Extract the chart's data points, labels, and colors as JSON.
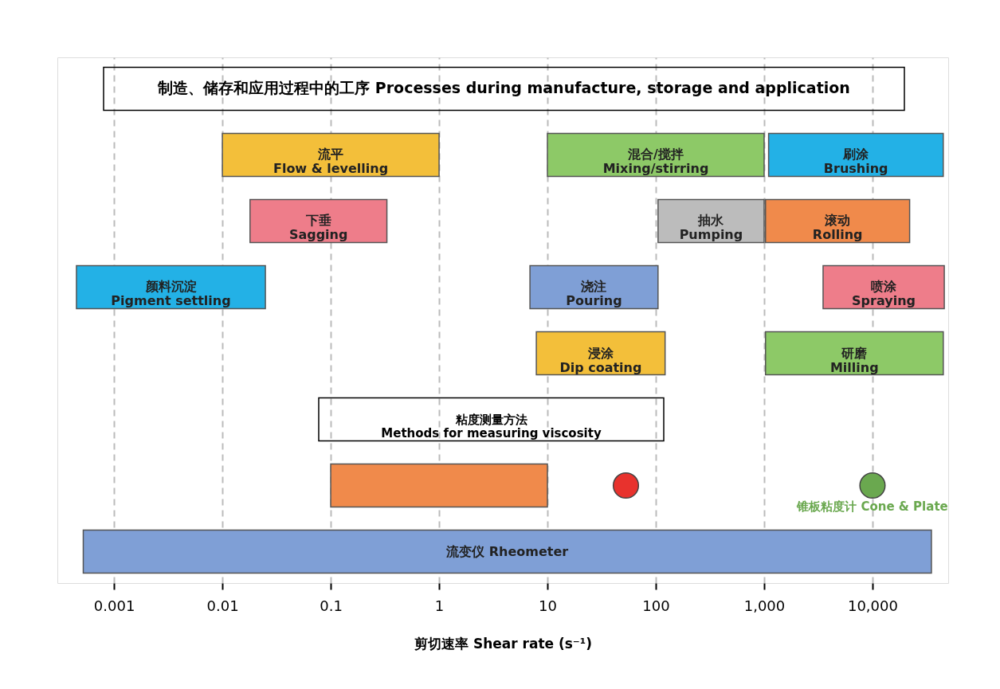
{
  "chart_data": {
    "type": "bar",
    "orientation": "horizontal",
    "log": "x",
    "grid": "x",
    "tick_labels": "x",
    "title": "制造、储存和应用过程中的工序 Processes during manufacture, storage and application",
    "xlabel": "剪切速率  Shear rate (s⁻¹)",
    "annotations": [
      "粘度测量方法\nMethods for measuring viscosity"
    ],
    "categories": [
      null,
      null,
      null,
      null,
      null,
      null,
      null,
      null
    ],
    "xlim": [
      0.0003,
      50000
    ],
    "xticks": [
      0.001,
      0.01,
      0.1,
      1,
      10,
      100,
      {
        "value": 1000,
        "label": "1,000"
      },
      {
        "value": 10000,
        "label": "10,000"
      }
    ],
    "series": [
      {
        "name": "流平\nFlow & levelling",
        "color": "#f3bf3a",
        "values": [
          null,
          0.99,
          null,
          null,
          null,
          null,
          null,
          null
        ],
        "base": [
          null,
          0.01,
          null,
          null,
          null,
          null,
          null,
          null
        ]
      },
      {
        "name": "混合/搅拌\nMixing/stirring",
        "color": "#8dc967",
        "values": [
          null,
          990,
          null,
          null,
          null,
          null,
          null,
          null
        ],
        "base": [
          null,
          10,
          null,
          null,
          null,
          null,
          null,
          null
        ]
      },
      {
        "name": "刷涂\nBrushing",
        "color": "#23b1e6",
        "values": [
          null,
          43900,
          null,
          null,
          null,
          null,
          null,
          null
        ],
        "base": [
          null,
          1100,
          null,
          null,
          null,
          null,
          null,
          null
        ]
      },
      {
        "name": "下垂\nSagging",
        "color": "#ee7d8a",
        "values": [
          null,
          null,
          0.312,
          null,
          null,
          null,
          null,
          null
        ],
        "base": [
          null,
          null,
          0.018,
          null,
          null,
          null,
          null,
          null
        ]
      },
      {
        "name": "抽水\nPumping",
        "color": "#bcbcbc",
        "values": [
          null,
          null,
          895,
          null,
          null,
          null,
          null,
          null
        ],
        "base": [
          null,
          null,
          105,
          null,
          null,
          null,
          null,
          null
        ]
      },
      {
        "name": "滚动\nRolling",
        "color": "#f08a4b",
        "values": [
          null,
          null,
          21000,
          null,
          null,
          null,
          null,
          null
        ],
        "base": [
          null,
          null,
          1030,
          null,
          null,
          null,
          null,
          null
        ]
      },
      {
        "name": "颜料沉淀\nPigment settling",
        "color": "#23b1e6",
        "values": [
          null,
          null,
          null,
          0.0245,
          null,
          null,
          null,
          null
        ],
        "base": [
          null,
          null,
          null,
          0.00045,
          null,
          null,
          null,
          null
        ]
      },
      {
        "name": "浇注\nPouring",
        "color": "#7f9fd6",
        "values": [
          null,
          null,
          null,
          98,
          null,
          null,
          null,
          null
        ],
        "base": [
          null,
          null,
          null,
          6.9,
          null,
          null,
          null,
          null
        ]
      },
      {
        "name": "喷涂\nSpraying",
        "color": "#ee7d8a",
        "values": [
          null,
          null,
          null,
          42500,
          null,
          null,
          null,
          null
        ],
        "base": [
          null,
          null,
          null,
          3500,
          null,
          null,
          null,
          null
        ]
      },
      {
        "name": "浸涂\nDip coating",
        "color": "#f3bf3a",
        "values": [
          null,
          null,
          null,
          null,
          114,
          null,
          null,
          null
        ],
        "base": [
          null,
          null,
          null,
          null,
          7.9,
          null,
          null,
          null
        ]
      },
      {
        "name": "研磨\nMilling",
        "color": "#8dc967",
        "values": [
          null,
          null,
          null,
          null,
          44000,
          null,
          null,
          null
        ],
        "base": [
          null,
          null,
          null,
          null,
          1030,
          null,
          null,
          null
        ]
      },
      {
        "color": "#f08a4b",
        "values": [
          null,
          null,
          null,
          null,
          null,
          null,
          9.9,
          null
        ],
        "base": [
          null,
          null,
          null,
          null,
          null,
          null,
          0.1,
          null
        ]
      },
      {
        "name": "流变仪 Rheometer",
        "color": "#7f9fd6",
        "values": [
          null,
          null,
          null,
          null,
          null,
          null,
          null,
          35000
        ],
        "base": [
          null,
          null,
          null,
          null,
          null,
          null,
          null,
          0.00052
        ]
      },
      {
        "type": "scatter",
        "color": "#e8322d",
        "values": [
          null,
          null,
          null,
          null,
          null,
          null,
          53,
          null
        ]
      },
      {
        "type": "scatter",
        "name": "锥板粘度计 Cone & Plate",
        "color": "#6aa84f",
        "values": [
          null,
          null,
          null,
          null,
          null,
          null,
          10000,
          null
        ]
      }
    ]
  }
}
